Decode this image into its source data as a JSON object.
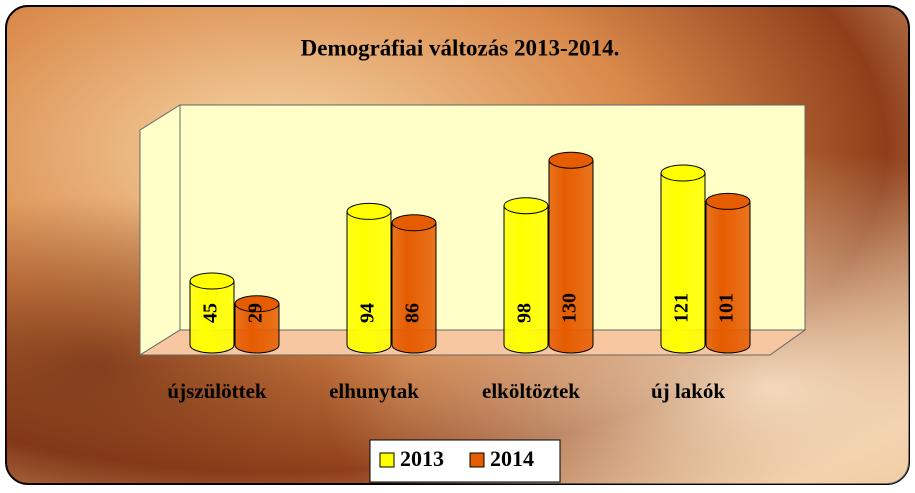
{
  "chart_data": {
    "type": "bar3d",
    "title": "Demográfiai változás 2013-2014.",
    "categories": [
      "újszülöttek",
      "elhunytak",
      "elköltöztek",
      "új lakók"
    ],
    "series": [
      {
        "name": "2013",
        "color": "#ffff00",
        "values": [
          45,
          94,
          98,
          121
        ]
      },
      {
        "name": "2014",
        "color": "#e65c00",
        "values": [
          29,
          86,
          130,
          101
        ]
      }
    ],
    "ylim": [
      0,
      140
    ]
  }
}
